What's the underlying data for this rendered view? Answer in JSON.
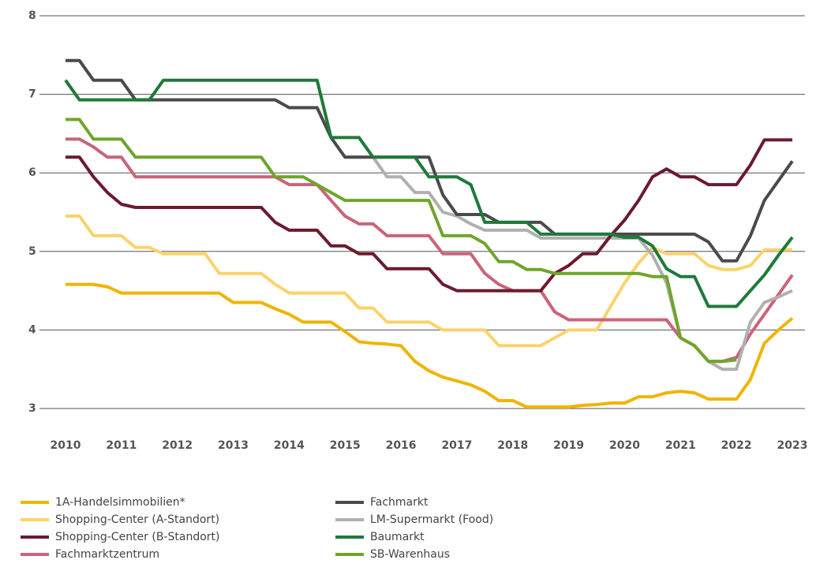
{
  "chart_data": {
    "type": "line",
    "x": [
      2010,
      2010.25,
      2010.5,
      2010.75,
      2011,
      2011.25,
      2011.5,
      2011.75,
      2012,
      2012.25,
      2012.5,
      2012.75,
      2013,
      2013.25,
      2013.5,
      2013.75,
      2014,
      2014.25,
      2014.5,
      2014.75,
      2015,
      2015.25,
      2015.5,
      2015.75,
      2016,
      2016.25,
      2016.5,
      2016.75,
      2017,
      2017.25,
      2017.5,
      2017.75,
      2018,
      2018.25,
      2018.5,
      2018.75,
      2019,
      2019.25,
      2019.5,
      2019.75,
      2020,
      2020.25,
      2020.5,
      2020.75,
      2021,
      2021.25,
      2021.5,
      2021.75,
      2022,
      2022.25,
      2022.5,
      2022.75,
      2023
    ],
    "xlim": [
      2010,
      2023
    ],
    "xticks": [
      2010,
      2011,
      2012,
      2013,
      2014,
      2015,
      2016,
      2017,
      2018,
      2019,
      2020,
      2021,
      2022,
      2023
    ],
    "ylim": [
      3,
      8
    ],
    "yticks": [
      3,
      4,
      5,
      6,
      7,
      8
    ],
    "grid": true,
    "legend": "bottom",
    "series": [
      {
        "name": "1A-Handelsimmobilien*",
        "color": "#f0b400",
        "values": [
          4.58,
          4.58,
          4.58,
          4.55,
          4.47,
          4.47,
          4.47,
          4.47,
          4.47,
          4.47,
          4.47,
          4.47,
          4.35,
          4.35,
          4.35,
          4.27,
          4.2,
          4.1,
          4.1,
          4.1,
          3.98,
          3.85,
          3.83,
          3.82,
          3.8,
          3.6,
          3.48,
          3.4,
          3.35,
          3.3,
          3.22,
          3.1,
          3.1,
          3.02,
          3.02,
          3.02,
          3.02,
          3.04,
          3.05,
          3.07,
          3.07,
          3.15,
          3.15,
          3.2,
          3.22,
          3.2,
          3.12,
          3.12,
          3.12,
          3.37,
          3.83,
          4.0,
          4.15
        ]
      },
      {
        "name": "Shopping-Center (A-Standort)",
        "color": "#fbd36b",
        "values": [
          5.45,
          5.45,
          5.2,
          5.2,
          5.2,
          5.05,
          5.05,
          4.97,
          4.97,
          4.97,
          4.97,
          4.72,
          4.72,
          4.72,
          4.72,
          4.58,
          4.47,
          4.47,
          4.47,
          4.47,
          4.47,
          4.28,
          4.28,
          4.1,
          4.1,
          4.1,
          4.1,
          4.0,
          4.0,
          4.0,
          4.0,
          3.8,
          3.8,
          3.8,
          3.8,
          3.9,
          4.0,
          4.0,
          4.0,
          4.3,
          4.6,
          4.85,
          5.05,
          4.97,
          4.97,
          4.97,
          4.82,
          4.77,
          4.77,
          4.82,
          5.02,
          5.02,
          5.02
        ]
      },
      {
        "name": "Shopping-Center (B-Standort)",
        "color": "#6b1a2e",
        "values": [
          6.2,
          6.2,
          5.95,
          5.75,
          5.6,
          5.56,
          5.56,
          5.56,
          5.56,
          5.56,
          5.56,
          5.56,
          5.56,
          5.56,
          5.56,
          5.37,
          5.27,
          5.27,
          5.27,
          5.07,
          5.07,
          4.97,
          4.97,
          4.78,
          4.78,
          4.78,
          4.78,
          4.58,
          4.5,
          4.5,
          4.5,
          4.5,
          4.5,
          4.5,
          4.5,
          4.72,
          4.82,
          4.97,
          4.97,
          5.2,
          5.4,
          5.65,
          5.95,
          6.05,
          5.95,
          5.95,
          5.85,
          5.85,
          5.85,
          6.1,
          6.42,
          6.42,
          6.42
        ]
      },
      {
        "name": "Fachmarktzentrum",
        "color": "#c9647a",
        "values": [
          6.43,
          6.43,
          6.33,
          6.2,
          6.2,
          5.95,
          5.95,
          5.95,
          5.95,
          5.95,
          5.95,
          5.95,
          5.95,
          5.95,
          5.95,
          5.95,
          5.85,
          5.85,
          5.85,
          5.65,
          5.45,
          5.35,
          5.35,
          5.2,
          5.2,
          5.2,
          5.2,
          4.97,
          4.97,
          4.97,
          4.72,
          4.58,
          4.5,
          4.5,
          4.5,
          4.23,
          4.13,
          4.13,
          4.13,
          4.13,
          4.13,
          4.13,
          4.13,
          4.13,
          3.9,
          3.8,
          3.6,
          3.6,
          3.65,
          3.95,
          4.2,
          4.45,
          4.7
        ]
      },
      {
        "name": "Fachmarkt",
        "color": "#4a4a4a",
        "values": [
          7.43,
          7.43,
          7.18,
          7.18,
          7.18,
          6.93,
          6.93,
          6.93,
          6.93,
          6.93,
          6.93,
          6.93,
          6.93,
          6.93,
          6.93,
          6.93,
          6.83,
          6.83,
          6.83,
          6.45,
          6.2,
          6.2,
          6.2,
          6.2,
          6.2,
          6.2,
          6.2,
          5.72,
          5.47,
          5.47,
          5.47,
          5.37,
          5.37,
          5.37,
          5.37,
          5.22,
          5.22,
          5.22,
          5.22,
          5.22,
          5.22,
          5.22,
          5.22,
          5.22,
          5.22,
          5.22,
          5.12,
          4.88,
          4.88,
          5.2,
          5.65,
          5.9,
          6.15
        ]
      },
      {
        "name": "LM-Supermarkt (Food)",
        "color": "#b0b0b0",
        "values": [
          null,
          null,
          null,
          null,
          null,
          null,
          null,
          null,
          null,
          null,
          null,
          null,
          null,
          null,
          null,
          null,
          null,
          null,
          null,
          null,
          6.2,
          6.2,
          6.2,
          5.95,
          5.95,
          5.75,
          5.75,
          5.5,
          5.45,
          5.35,
          5.27,
          5.27,
          5.27,
          5.27,
          5.17,
          5.17,
          5.17,
          5.17,
          5.17,
          5.17,
          5.17,
          5.17,
          4.95,
          4.6,
          3.9,
          3.8,
          3.6,
          3.5,
          3.5,
          4.1,
          4.35,
          4.42,
          4.5
        ]
      },
      {
        "name": "Baumarkt",
        "color": "#1e7a3a",
        "values": [
          7.18,
          6.93,
          6.93,
          6.93,
          6.93,
          6.93,
          6.93,
          7.18,
          7.18,
          7.18,
          7.18,
          7.18,
          7.18,
          7.18,
          7.18,
          7.18,
          7.18,
          7.18,
          7.18,
          6.45,
          6.45,
          6.45,
          6.2,
          6.2,
          6.2,
          6.2,
          5.95,
          5.95,
          5.95,
          5.85,
          5.37,
          5.37,
          5.37,
          5.37,
          5.22,
          5.22,
          5.22,
          5.22,
          5.22,
          5.22,
          5.18,
          5.18,
          5.07,
          4.78,
          4.68,
          4.68,
          4.3,
          4.3,
          4.3,
          4.5,
          4.7,
          4.95,
          5.18
        ]
      },
      {
        "name": "SB-Warenhaus",
        "color": "#6fa52b",
        "values": [
          6.68,
          6.68,
          6.43,
          6.43,
          6.43,
          6.2,
          6.2,
          6.2,
          6.2,
          6.2,
          6.2,
          6.2,
          6.2,
          6.2,
          6.2,
          5.95,
          5.95,
          5.95,
          5.85,
          5.75,
          5.65,
          5.65,
          5.65,
          5.65,
          5.65,
          5.65,
          5.65,
          5.2,
          5.2,
          5.2,
          5.1,
          4.87,
          4.87,
          4.77,
          4.77,
          4.72,
          4.72,
          4.72,
          4.72,
          4.72,
          4.72,
          4.72,
          4.68,
          4.68,
          3.9,
          3.8,
          3.6,
          3.6,
          3.62,
          null,
          null,
          null,
          null
        ]
      }
    ]
  }
}
